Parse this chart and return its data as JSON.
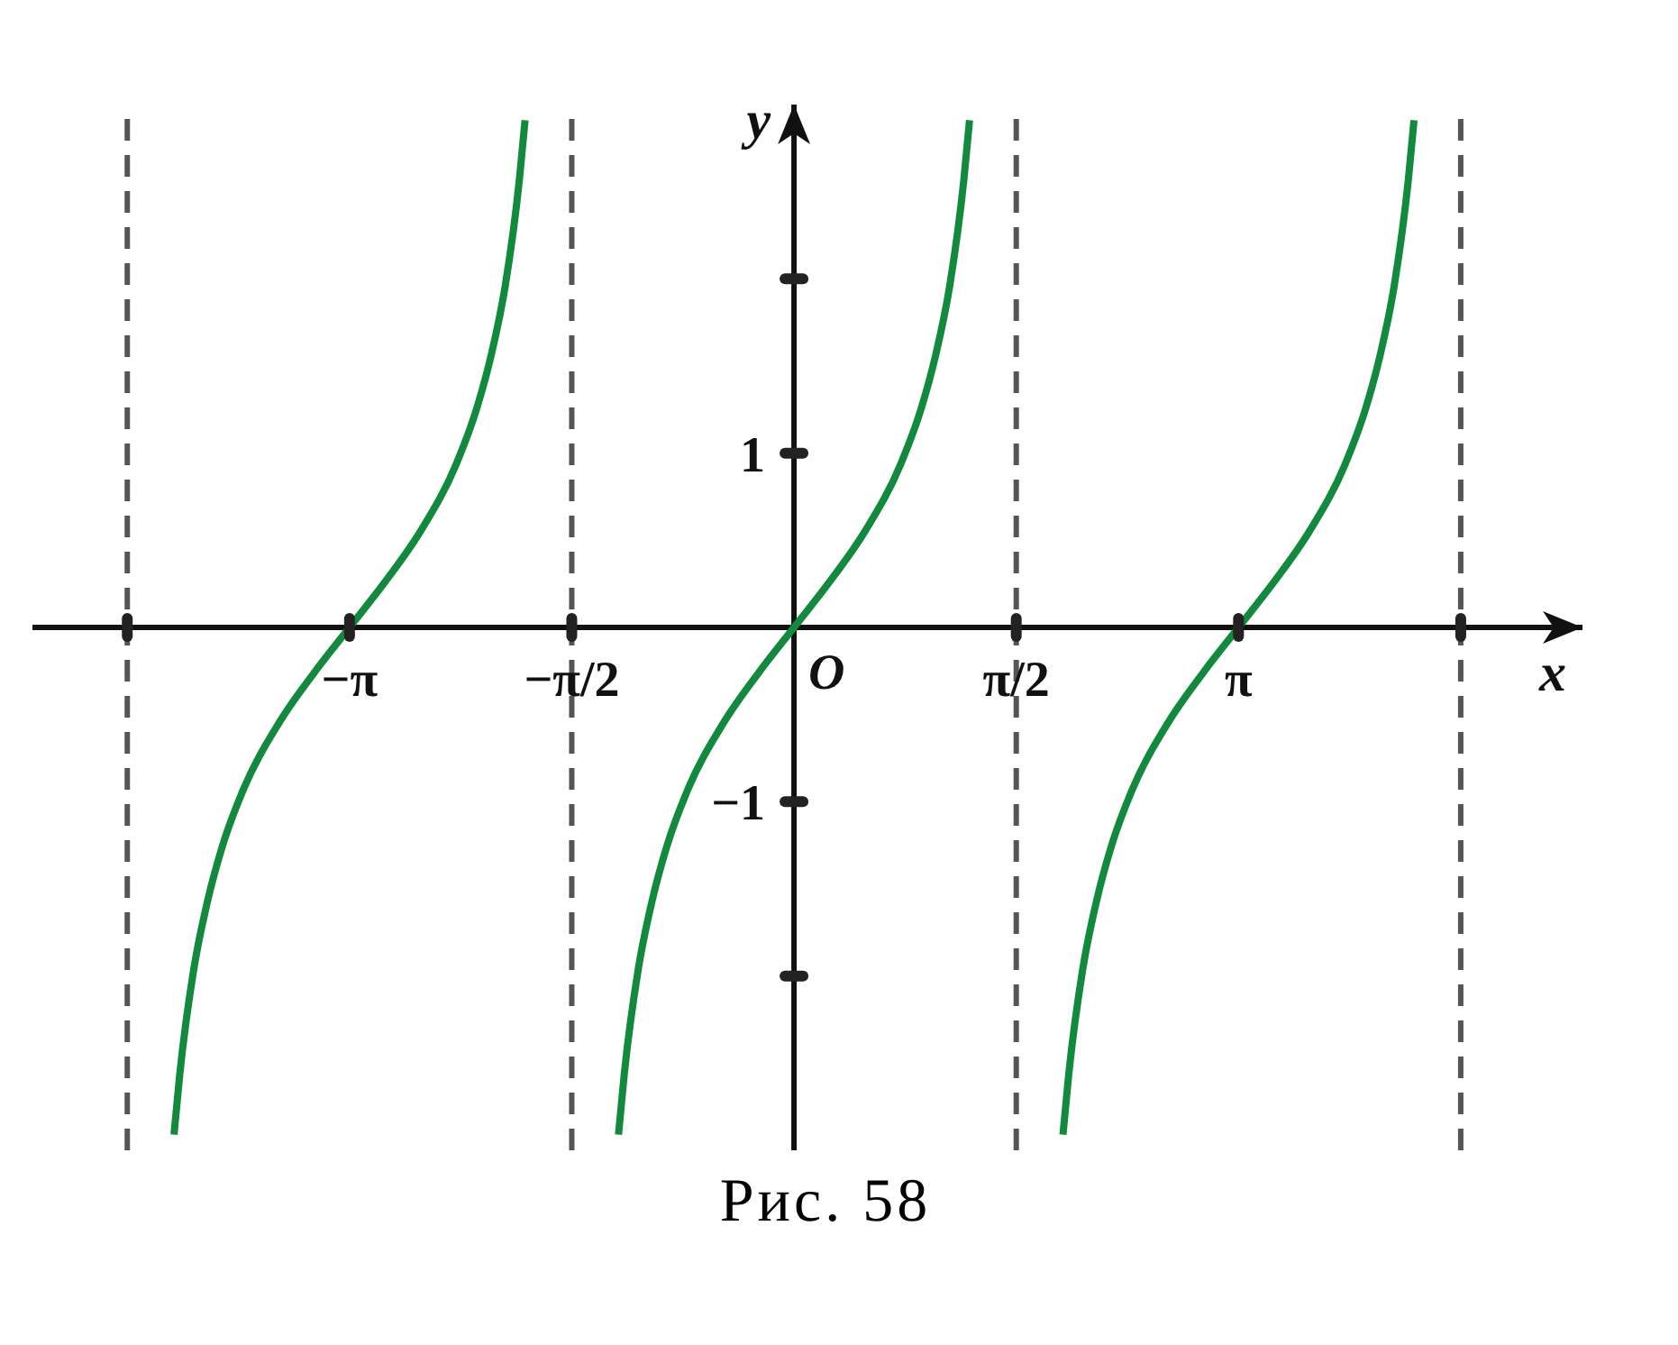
{
  "chart_data": {
    "type": "line",
    "xlabel": "x",
    "ylabel": "y",
    "marker": "none",
    "line_style": "solid",
    "xlim": [
      -5.38,
      5.57
    ],
    "ylim": [
      -3,
      3
    ],
    "xticks": [
      {
        "value": -4.71,
        "label": null
      },
      {
        "value": -3.14,
        "label": "−π"
      },
      {
        "value": -1.57,
        "label": "−π/2"
      },
      {
        "value": 1.57,
        "label": "π/2"
      },
      {
        "value": 3.14,
        "label": "π"
      },
      {
        "value": 4.71,
        "label": null
      }
    ],
    "yticks": [
      {
        "value": 2,
        "label": null
      },
      1,
      {
        "value": -1,
        "label": "−1"
      },
      {
        "value": -2,
        "label": null
      }
    ],
    "ref_lines": [
      {
        "axis": "x",
        "value": -4.71,
        "color": "#555555",
        "line_style": "dashed"
      },
      {
        "axis": "x",
        "value": -1.57,
        "color": "#555555",
        "line_style": "dashed"
      },
      {
        "axis": "x",
        "value": 1.57,
        "color": "#555555",
        "line_style": "dashed"
      },
      {
        "axis": "x",
        "value": 4.71,
        "color": "#555555",
        "line_style": "dashed"
      }
    ],
    "annotations": [
      {
        "text": "O",
        "x": 0,
        "y": 0
      },
      "Рис. 58"
    ],
    "series": [
      {
        "color": "#118a3e",
        "x": [
          -4.38,
          -4.34,
          -4.24,
          -4.14,
          -4.04,
          -3.89,
          -3.64,
          -3.39,
          -3.14,
          -2.89,
          -2.64,
          -2.39,
          -2.24,
          -2.14,
          -2.04,
          -1.94,
          -1.9
        ],
        "values": [
          -2.91,
          -2.57,
          -1.96,
          -1.56,
          -1.26,
          -0.93,
          -0.55,
          -0.26,
          0,
          0.26,
          0.55,
          0.93,
          1.26,
          1.56,
          1.96,
          2.57,
          2.91
        ]
      },
      {
        "color": "#118a3e",
        "x": [
          -1.24,
          -1.2,
          -1.1,
          -1.0,
          -0.9,
          -0.75,
          -0.5,
          -0.25,
          0,
          0.25,
          0.5,
          0.75,
          0.9,
          1.0,
          1.1,
          1.2,
          1.24
        ],
        "values": [
          -2.91,
          -2.57,
          -1.96,
          -1.56,
          -1.26,
          -0.93,
          -0.55,
          -0.26,
          0,
          0.26,
          0.55,
          0.93,
          1.26,
          1.56,
          1.96,
          2.57,
          2.91
        ]
      },
      {
        "color": "#118a3e",
        "x": [
          1.9,
          1.94,
          2.04,
          2.14,
          2.24,
          2.39,
          2.64,
          2.89,
          3.14,
          3.39,
          3.64,
          3.89,
          4.04,
          4.14,
          4.24,
          4.34,
          4.38
        ],
        "values": [
          -2.91,
          -2.57,
          -1.96,
          -1.56,
          -1.26,
          -0.93,
          -0.55,
          -0.26,
          0,
          0.26,
          0.55,
          0.93,
          1.26,
          1.56,
          1.96,
          2.57,
          2.91
        ]
      }
    ]
  }
}
